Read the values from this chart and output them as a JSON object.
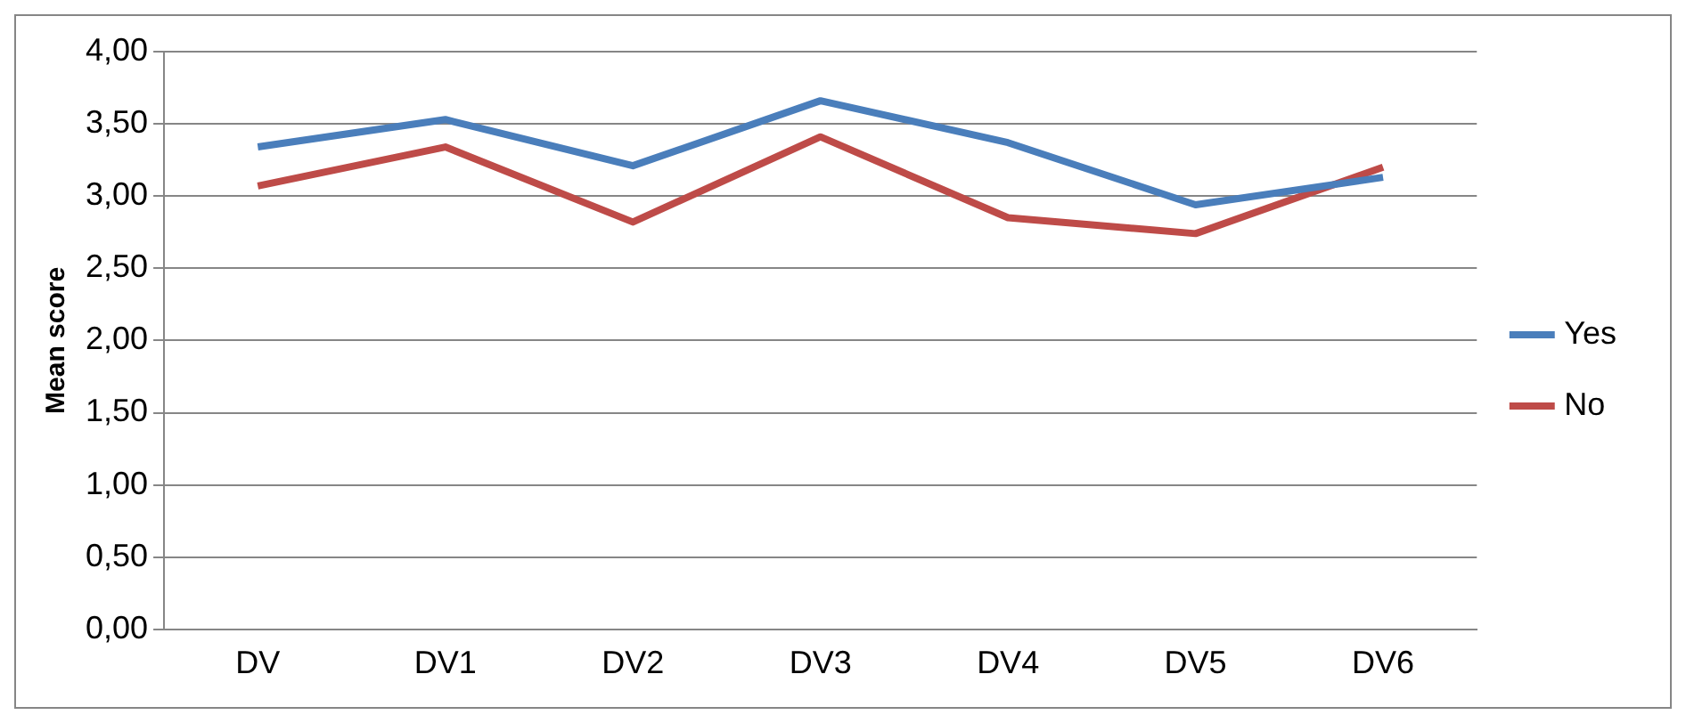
{
  "chart_data": {
    "type": "line",
    "ylabel": "Mean score",
    "categories": [
      "DV",
      "DV1",
      "DV2",
      "DV3",
      "DV4",
      "DV5",
      "DV6"
    ],
    "series": [
      {
        "name": "Yes",
        "color": "#4a7ebb",
        "values": [
          3.34,
          3.53,
          3.21,
          3.66,
          3.37,
          2.94,
          3.13
        ]
      },
      {
        "name": "No",
        "color": "#be4b48",
        "values": [
          3.07,
          3.34,
          2.82,
          3.41,
          2.85,
          2.74,
          3.2
        ]
      }
    ],
    "ylim": [
      0,
      4
    ],
    "yticks": [
      {
        "value": 0,
        "label": "0,00"
      },
      {
        "value": 0.5,
        "label": "0,50"
      },
      {
        "value": 1,
        "label": "1,00"
      },
      {
        "value": 1.5,
        "label": "1,50"
      },
      {
        "value": 2,
        "label": "2,00"
      },
      {
        "value": 2.5,
        "label": "2,50"
      },
      {
        "value": 3,
        "label": "3,00"
      },
      {
        "value": 3.5,
        "label": "3,50"
      },
      {
        "value": 4,
        "label": "4,00"
      }
    ],
    "grid": "y",
    "legend": "right",
    "marker": "none",
    "line_style": "solid"
  }
}
